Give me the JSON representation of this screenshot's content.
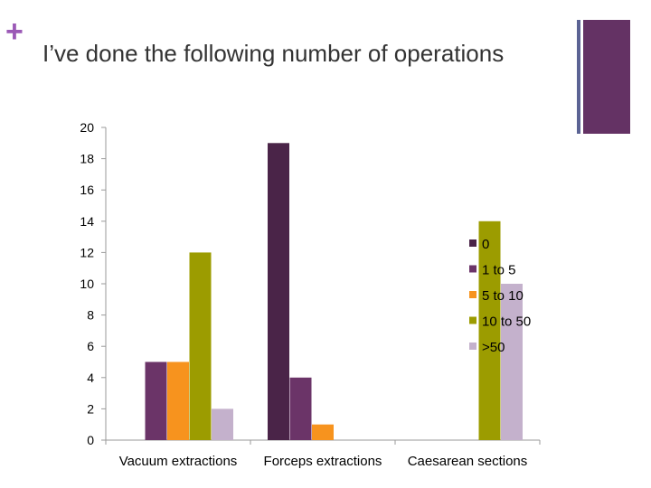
{
  "slide": {
    "plus_glyph": "+",
    "title": "I’ve done the following number of operations"
  },
  "colors": {
    "accent_plus": "#9b59b6",
    "deco_line": "#5b6394",
    "deco_square": "#643264"
  },
  "chart_data": {
    "type": "bar",
    "title": "",
    "xlabel": "",
    "ylabel": "",
    "categories": [
      "Vacuum extractions",
      "Forceps extractions",
      "Caesarean sections"
    ],
    "ylim": [
      0,
      20
    ],
    "yticks": [
      0,
      2,
      4,
      6,
      8,
      10,
      12,
      14,
      16,
      18,
      20
    ],
    "grid": false,
    "legend_position": "right",
    "series": [
      {
        "name": "0",
        "color": "#4a2448",
        "values": [
          0,
          19,
          0
        ]
      },
      {
        "name": "1 to 5",
        "color": "#6b3468",
        "values": [
          5,
          4,
          0
        ]
      },
      {
        "name": "5 to 10",
        "color": "#f7931e",
        "values": [
          5,
          1,
          0
        ]
      },
      {
        "name": "10 to 50",
        "color": "#9c9c00",
        "values": [
          12,
          0,
          14
        ]
      },
      {
        "name": ">50",
        "color": "#c4b1cc",
        "values": [
          2,
          0,
          10
        ]
      }
    ]
  }
}
